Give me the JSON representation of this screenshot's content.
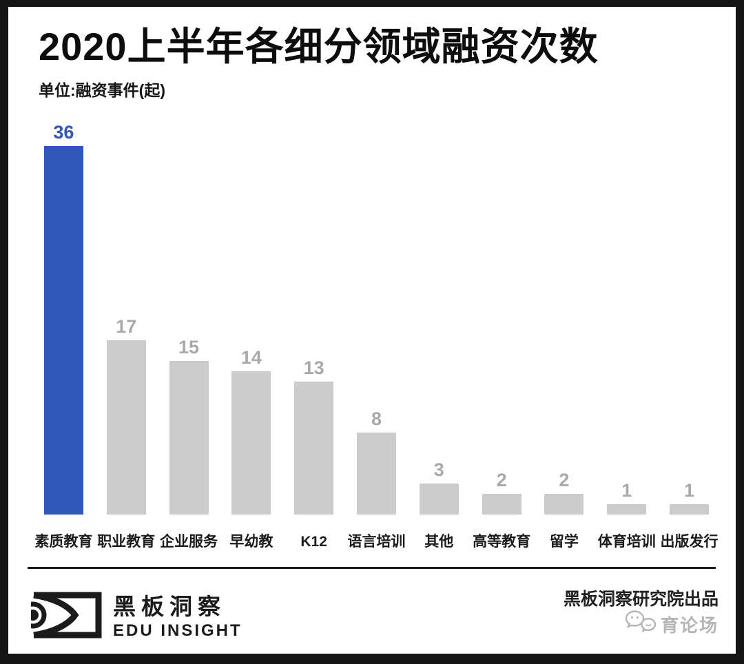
{
  "header": {
    "title": "2020上半年各细分领域融资次数",
    "unit_label": "单位:融资事件(起)"
  },
  "chart_data": {
    "type": "bar",
    "title": "2020上半年各细分领域融资次数",
    "unit": "融资事件(起)",
    "categories": [
      "素质教育",
      "职业教育",
      "企业服务",
      "早幼教",
      "K12",
      "语言培训",
      "其他",
      "高等教育",
      "留学",
      "体育培训",
      "出版发行"
    ],
    "values": [
      36,
      17,
      15,
      14,
      13,
      8,
      3,
      2,
      2,
      1,
      1
    ],
    "ylim": [
      0,
      36
    ],
    "grid": false,
    "legend": false,
    "value_labels": true,
    "highlight_index": 0,
    "colors": {
      "bar_highlight": "#2F58BA",
      "bar_default": "#CCCCCC",
      "value_label_highlight": "#2F58BA",
      "value_label_default": "#A9A9A9"
    }
  },
  "footer": {
    "logo_icon": "eye-logo-icon",
    "logo_cn": "黑板洞察",
    "logo_en": "EDU INSIGHT",
    "byline": "黑板洞察研究院出品",
    "watermark_icon": "wechat-bubbles-icon",
    "watermark": "育论场"
  }
}
